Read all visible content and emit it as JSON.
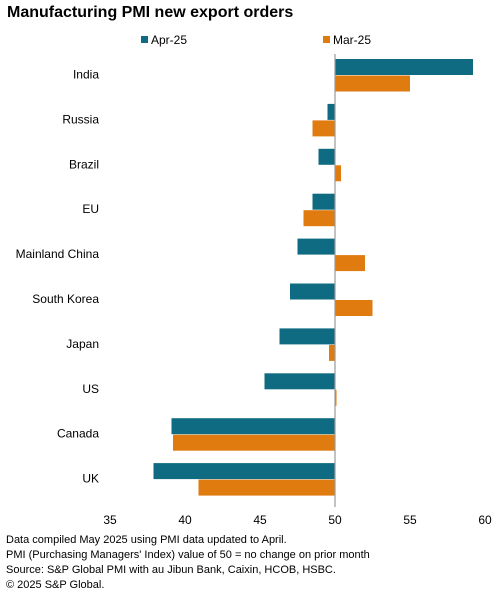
{
  "chart_data": {
    "type": "bar",
    "orientation": "horizontal",
    "title": "Manufacturing PMI new export orders",
    "categories": [
      "India",
      "Russia",
      "Brazil",
      "EU",
      "Mainland China",
      "South Korea",
      "Japan",
      "US",
      "Canada",
      "UK"
    ],
    "series": [
      {
        "name": "Apr-25",
        "color": "#0e6b82",
        "values": [
          59.2,
          49.5,
          48.9,
          48.5,
          47.5,
          47.0,
          46.3,
          45.3,
          39.1,
          37.9
        ]
      },
      {
        "name": "Mar-25",
        "color": "#e07b10",
        "values": [
          55.0,
          48.5,
          50.4,
          47.9,
          52.0,
          52.5,
          49.6,
          50.1,
          39.2,
          40.9
        ]
      }
    ],
    "baseline": 50,
    "xlim": [
      35,
      60
    ],
    "xticks": [
      35,
      40,
      45,
      50,
      55,
      60
    ],
    "legend_position": "top",
    "grid": false
  },
  "footnotes": [
    "Data compiled May 2025 using PMI data updated to April.",
    "PMI (Purchasing Managers' Index) value of 50 = no change on prior month",
    "Source: S&P Global PMI with au Jibun Bank, Caixin, HCOB, HSBC.",
    "© 2025 S&P Global."
  ]
}
